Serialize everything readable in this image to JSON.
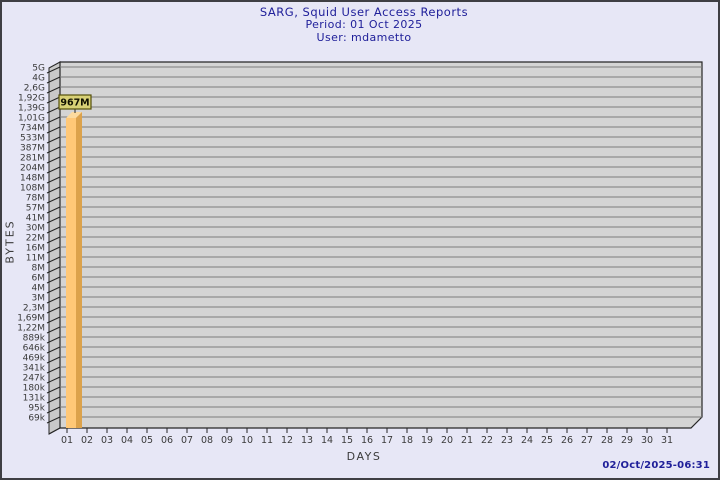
{
  "title": {
    "line1": "SARG, Squid User Access Reports",
    "line2": "Period: 01 Oct 2025",
    "line3": "User: mdametto"
  },
  "footer": {
    "generated": "02/Oct/2025-06:31"
  },
  "chart_data": {
    "type": "bar",
    "title": "SARG, Squid User Access Reports",
    "subtitle": "Period: 01 Oct 2025",
    "user": "User: mdametto",
    "xlabel": "DAYS",
    "ylabel": "BYTES",
    "scale": "log",
    "grid": true,
    "x_categories": [
      "01",
      "02",
      "03",
      "04",
      "05",
      "06",
      "07",
      "08",
      "09",
      "10",
      "11",
      "12",
      "13",
      "14",
      "15",
      "16",
      "17",
      "18",
      "19",
      "20",
      "21",
      "22",
      "23",
      "24",
      "25",
      "26",
      "27",
      "28",
      "29",
      "30",
      "31"
    ],
    "y_tick_labels": [
      "5G",
      "4G",
      "2,6G",
      "1,92G",
      "1,39G",
      "1,01G",
      "734M",
      "533M",
      "387M",
      "281M",
      "204M",
      "148M",
      "108M",
      "78M",
      "57M",
      "41M",
      "30M",
      "22M",
      "16M",
      "11M",
      "8M",
      "6M",
      "4M",
      "3M",
      "2,3M",
      "1,69M",
      "1,22M",
      "889k",
      "646k",
      "469k",
      "341k",
      "247k",
      "180k",
      "131k",
      "95k",
      "69k"
    ],
    "y_tick_values": [
      5000000000,
      4000000000,
      2600000000,
      1920000000,
      1390000000,
      1010000000,
      734000000,
      533000000,
      387000000,
      281000000,
      204000000,
      148000000,
      108000000,
      78000000,
      57000000,
      41000000,
      30000000,
      22000000,
      16000000,
      11000000,
      8000000,
      6000000,
      4000000,
      3000000,
      2300000,
      1690000,
      1220000,
      889000,
      646000,
      469000,
      341000,
      247000,
      180000,
      131000,
      95000,
      69000
    ],
    "bars": [
      {
        "category": "01",
        "label": "967M",
        "value": 967000000
      }
    ]
  },
  "colors": {
    "background": "#e7e7f6",
    "title_text": "#20209a",
    "plot_bg": "#d4d4d4",
    "wall_bg": "#c9c9c9",
    "grid_line": "#7d7d7d",
    "frame_line": "#262626",
    "tick_text": "#3b3b3b",
    "bar_front": "#ffc877",
    "bar_side": "#dca24b",
    "bar_top": "#fcda9e",
    "value_box_bg": "#d8d176",
    "value_box_border": "#55500a",
    "value_box_text": "#111100"
  }
}
